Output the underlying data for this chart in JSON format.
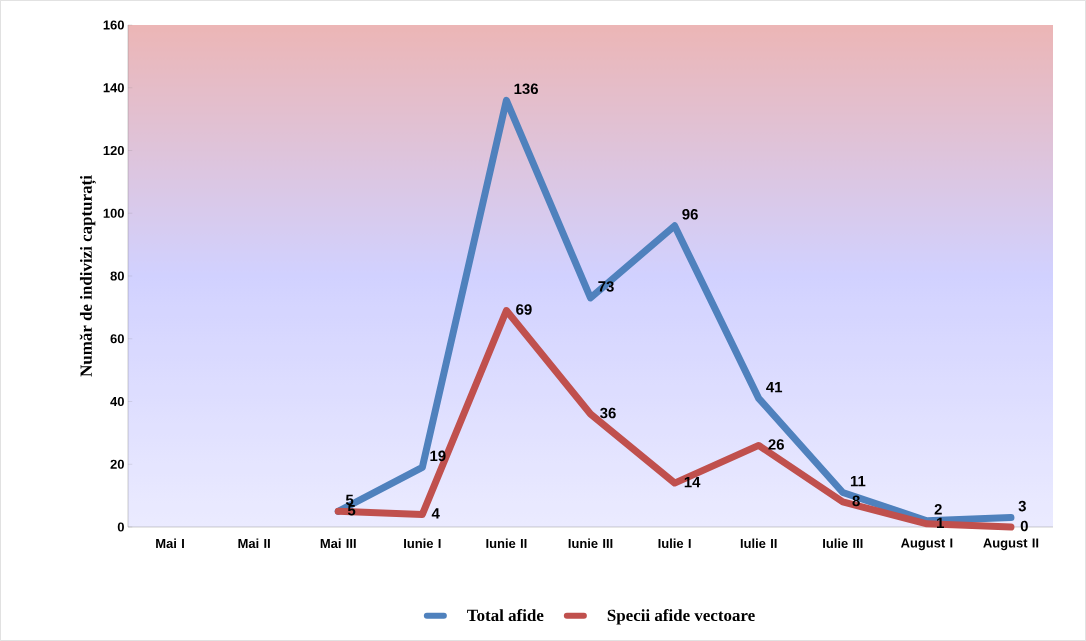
{
  "chart_data": {
    "type": "line",
    "ylabel": "Număr de indivizi capturați",
    "categories": [
      "Mai I",
      "Mai II",
      "Mai III",
      "Iunie I",
      "Iunie II",
      "Iunie III",
      "Iulie I",
      "Iulie II",
      "Iulie III",
      "August I",
      "August II"
    ],
    "series": [
      {
        "name": "Total afide",
        "color": "#4f81bd",
        "values": [
          null,
          null,
          5,
          19,
          136,
          73,
          96,
          41,
          11,
          2,
          3
        ]
      },
      {
        "name": "Specii afide vectoare",
        "color": "#c0504d",
        "values": [
          null,
          null,
          5,
          4,
          69,
          36,
          14,
          26,
          8,
          1,
          0
        ]
      }
    ],
    "ylim": [
      0,
      160
    ],
    "yticks": [
      0,
      20,
      40,
      60,
      80,
      100,
      120,
      140,
      160
    ],
    "data_labels": true,
    "legend": "bottom",
    "marker": "none",
    "line_style": "solid"
  }
}
